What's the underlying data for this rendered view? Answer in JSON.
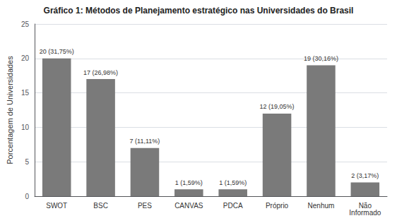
{
  "chart_data": {
    "type": "bar",
    "title": "Gráfico 1: Métodos de Planejamento estratégico nas Universidades do Brasil",
    "categories": [
      "SWOT",
      "BSC",
      "PES",
      "CANVAS",
      "PDCA",
      "Próprio",
      "Nenhum",
      "Não\nInformado"
    ],
    "values": [
      20,
      17,
      7,
      1,
      1,
      12,
      19,
      2
    ],
    "value_labels": [
      "20 (31,75%)",
      "17 (26,98%)",
      "7 (11,11%)",
      "1 (1,59%)",
      "1 (1,59%)",
      "12 (19,05%)",
      "19 (30,16%)",
      "2 (3,17%)"
    ],
    "color": "#7a7a7a",
    "ylabel": "Porcentagem de Universidades",
    "ylim": [
      0,
      25
    ],
    "yticks": [
      0,
      5,
      10,
      15,
      20,
      25
    ],
    "grid": true,
    "data_labels": true
  }
}
